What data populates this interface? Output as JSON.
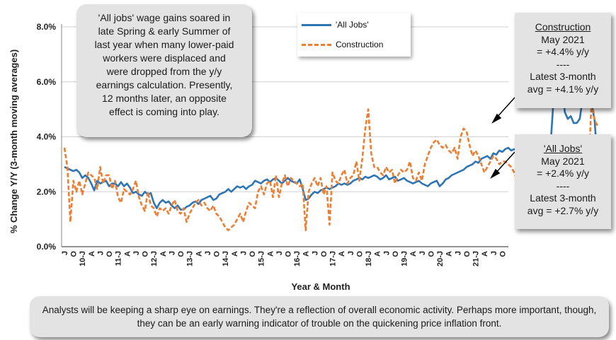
{
  "chart_data": {
    "type": "line",
    "xlabel": "Year & Month",
    "ylabel": "% Change Y/Y (3-month moving averages)",
    "ylim": [
      0,
      8
    ],
    "yticks": [
      "0.0%",
      "2.0%",
      "4.0%",
      "6.0%",
      "8.0%"
    ],
    "xticks": [
      "J",
      "O",
      "10-J",
      "A",
      "J",
      "O",
      "11-J",
      "A",
      "J",
      "O",
      "12-J",
      "A",
      "J",
      "O",
      "13-J",
      "A",
      "J",
      "O",
      "14-J",
      "A",
      "J",
      "O",
      "15-J",
      "A",
      "J",
      "O",
      "16-J",
      "A",
      "J",
      "O",
      "17-J",
      "A",
      "J",
      "O",
      "18-J",
      "A",
      "J",
      "O",
      "19-J",
      "A",
      "J",
      "O",
      "20-J",
      "A",
      "J",
      "O",
      "21-J",
      "A",
      "J",
      "O"
    ],
    "x_start": "2009-07",
    "series": [
      {
        "name": "'All Jobs'",
        "color": "#2e75b6",
        "style": "solid",
        "values": [
          2.9,
          2.85,
          2.8,
          2.75,
          2.8,
          2.7,
          2.5,
          2.6,
          2.5,
          2.3,
          2.05,
          2.4,
          2.3,
          2.35,
          2.4,
          2.2,
          2.3,
          2.3,
          2.2,
          2.35,
          2.2,
          2.3,
          2.15,
          1.95,
          2.0,
          1.9,
          1.85,
          2.0,
          1.9,
          1.95,
          1.6,
          1.4,
          1.6,
          1.7,
          1.6,
          1.65,
          1.5,
          1.4,
          1.5,
          1.35,
          1.35,
          1.45,
          1.5,
          1.6,
          1.65,
          1.55,
          1.7,
          1.75,
          1.8,
          1.85,
          1.7,
          1.75,
          1.9,
          1.95,
          2.0,
          2.1,
          2.0,
          2.1,
          2.2,
          2.15,
          2.2,
          2.1,
          2.2,
          2.25,
          2.4,
          2.35,
          2.3,
          2.4,
          2.45,
          2.35,
          2.45,
          2.5,
          2.4,
          2.3,
          2.4,
          2.5,
          2.4,
          2.35,
          2.3,
          2.45,
          2.1,
          1.7,
          1.75,
          1.9,
          2.0,
          1.95,
          2.05,
          2.1,
          2.15,
          2.1,
          2.15,
          2.2,
          2.3,
          2.25,
          2.3,
          2.25,
          2.3,
          2.4,
          2.45,
          2.5,
          2.45,
          2.55,
          2.5,
          2.55,
          2.6,
          2.55,
          2.45,
          2.5,
          2.6,
          2.45,
          2.5,
          2.55,
          2.4,
          2.45,
          2.5,
          2.4,
          2.35,
          2.3,
          2.35,
          2.4,
          2.3,
          2.25,
          2.2,
          2.3,
          2.35,
          2.4,
          2.2,
          2.3,
          2.45,
          2.5,
          2.6,
          2.65,
          2.7,
          2.75,
          2.8,
          2.9,
          2.95,
          3.0,
          3.1,
          3.05,
          3.2,
          3.25,
          3.3,
          3.2,
          3.4,
          3.35,
          3.5,
          3.45,
          3.55,
          3.6,
          3.5,
          3.55,
          3.5,
          3.55,
          3.6,
          3.65,
          3.7,
          3.7,
          3.65,
          3.75,
          3.55,
          3.3,
          3.4,
          3.35,
          5.0,
          7.85,
          7.2,
          6.0,
          4.9,
          4.65,
          4.75,
          4.5,
          4.5,
          4.65,
          5.4,
          5.4,
          5.25,
          5.2,
          4.6,
          3.0,
          1.2,
          1.8,
          1.35,
          2.35
        ]
      },
      {
        "name": "Construction",
        "color": "#ed7d31",
        "style": "dashed",
        "values": [
          3.6,
          2.9,
          0.9,
          2.4,
          2.0,
          2.4,
          1.9,
          2.3,
          2.7,
          2.6,
          2.5,
          2.1,
          2.9,
          2.3,
          2.6,
          2.6,
          2.1,
          2.4,
          1.8,
          1.6,
          2.1,
          2.0,
          1.9,
          2.1,
          2.4,
          1.8,
          1.5,
          1.3,
          2.0,
          1.5,
          1.4,
          1.1,
          1.4,
          1.3,
          1.4,
          1.2,
          1.5,
          1.7,
          1.3,
          1.2,
          1.4,
          0.9,
          1.2,
          1.4,
          1.6,
          1.7,
          1.5,
          1.6,
          1.4,
          1.3,
          1.5,
          1.2,
          1.1,
          0.9,
          0.7,
          0.6,
          0.7,
          0.8,
          1.0,
          1.2,
          0.9,
          1.3,
          1.6,
          1.5,
          1.4,
          2.0,
          2.2,
          1.9,
          2.3,
          2.4,
          1.8,
          2.6,
          1.8,
          2.3,
          2.6,
          2.2,
          2.5,
          2.4,
          2.3,
          2.2,
          2.3,
          0.6,
          2.0,
          2.3,
          2.5,
          2.2,
          2.5,
          1.9,
          2.2,
          0.8,
          2.7,
          2.4,
          2.3,
          2.6,
          2.8,
          2.3,
          2.5,
          2.6,
          3.1,
          2.4,
          3.2,
          4.3,
          5.0,
          3.4,
          2.9,
          2.9,
          2.7,
          2.6,
          2.9,
          2.7,
          2.8,
          2.3,
          2.6,
          2.8,
          2.7,
          2.8,
          3.1,
          2.5,
          2.4,
          2.7,
          2.4,
          3.0,
          3.3,
          3.6,
          3.8,
          3.9,
          3.7,
          3.6,
          3.7,
          3.5,
          3.4,
          3.6,
          3.2,
          4.0,
          4.3,
          4.2,
          3.7,
          3.3,
          3.5,
          3.3,
          3.0,
          2.7,
          2.9,
          3.1,
          3.3,
          3.2,
          3.0,
          3.1,
          3.1,
          3.0,
          2.9,
          2.7,
          2.4,
          2.3,
          2.4,
          2.2,
          2.4,
          2.6,
          2.9,
          1.6,
          0.9,
          2.3,
          2.4,
          2.8,
          2.9,
          2.9,
          2.8,
          2.6,
          2.5,
          2.6,
          2.9,
          2.6,
          2.3,
          2.5,
          2.7,
          2.4,
          2.9,
          5.4,
          4.6,
          4.4
        ]
      }
    ]
  },
  "callout_main": "'All jobs' wage gains soared in\nlate Spring & early Summer of\nlast year when many lower-paid\nworkers were displaced and\nwere dropped from the y/y\nearnings calculation. Presently,\n12 months later, an opposite\neffect is coming into play.",
  "box_construction": {
    "title": "Construction",
    "body": "May 2021\n= +4.4% y/y\n----\nLatest 3-month\navg = +4.1% y/y"
  },
  "box_alljobs": {
    "title": "'All Jobs'",
    "body": "May 2021\n= +2.4% y/y\n----\nLatest 3-month\navg = +2.7% y/y"
  },
  "footer_note": "Analysts will be keeping a sharp eye on earnings. They're a reflection of overall economic activity. Perhaps more important, though, they can be an early warning indicator of trouble on the quickening price inflation front."
}
